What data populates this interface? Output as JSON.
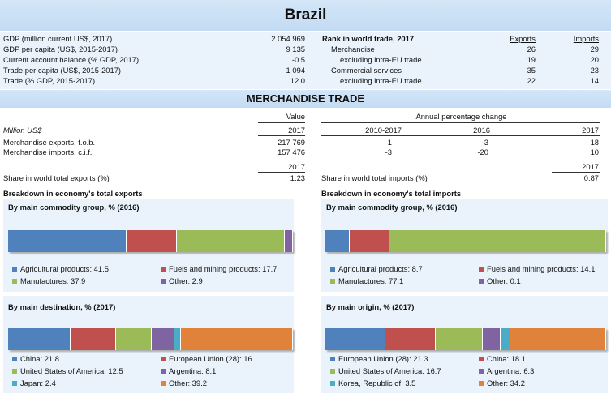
{
  "title": "Brazil",
  "indicators": [
    {
      "label": "GDP (million current US$, 2017)",
      "value": "2 054 969"
    },
    {
      "label": "GDP per capita (US$, 2015-2017)",
      "value": "9 135"
    },
    {
      "label": "Current account balance (% GDP, 2017)",
      "value": "-0.5"
    },
    {
      "label": "Trade per capita (US$, 2015-2017)",
      "value": "1 094"
    },
    {
      "label": "Trade (% GDP, 2015-2017)",
      "value": "12.0"
    }
  ],
  "rank": {
    "title": "Rank in world trade, 2017",
    "exports_hdr": "Exports",
    "imports_hdr": "Imports",
    "rows": [
      {
        "label": "Merchandise",
        "exports": "26",
        "imports": "29"
      },
      {
        "label": "excluding intra-EU trade",
        "exports": "19",
        "imports": "20"
      },
      {
        "label": "Commercial services",
        "exports": "35",
        "imports": "23"
      },
      {
        "label": "excluding intra-EU trade",
        "exports": "22",
        "imports": "14"
      }
    ]
  },
  "merch": {
    "title": "MERCHANDISE TRADE",
    "value_hdr": "Value",
    "apc_hdr": "Annual percentage change",
    "unit": "Million US$",
    "years": [
      "2017",
      "2010-2017",
      "2016",
      "2017"
    ],
    "rows": [
      {
        "label": "Merchandise exports, f.o.b.",
        "value": "217 769",
        "p1": "1",
        "p2": "-3",
        "p3": "18"
      },
      {
        "label": "Merchandise imports, c.i.f.",
        "value": "157 476",
        "p1": "-3",
        "p2": "-20",
        "p3": "10"
      }
    ],
    "share_year": "2017",
    "share_exp_label": "Share in world total exports (%)",
    "share_exp": "1.23",
    "share_imp_label": "Share in world total imports (%)",
    "share_imp": "0.87"
  },
  "colors": {
    "blue": "#4f81bd",
    "red": "#c0504d",
    "green": "#9bbb59",
    "purple": "#8064a2",
    "teal": "#4bacc6",
    "orange": "#e0823a"
  },
  "exports": {
    "heading": "Breakdown in economy's total exports",
    "commodity": {
      "title": "By main commodity group, % (2016)",
      "items": [
        {
          "label": "Agricultural products: 41.5",
          "value": 41.5,
          "color": "blue"
        },
        {
          "label": "Fuels and mining products: 17.7",
          "value": 17.7,
          "color": "red"
        },
        {
          "label": "Manufactures: 37.9",
          "value": 37.9,
          "color": "green"
        },
        {
          "label": "Other: 2.9",
          "value": 2.9,
          "color": "purple"
        }
      ]
    },
    "dest": {
      "title": "By main destination, % (2017)",
      "items": [
        {
          "label": "China: 21.8",
          "value": 21.8,
          "color": "blue"
        },
        {
          "label": "European Union (28): 16",
          "value": 16,
          "color": "red"
        },
        {
          "label": "United States of America: 12.5",
          "value": 12.5,
          "color": "green"
        },
        {
          "label": "Argentina: 8.1",
          "value": 8.1,
          "color": "purple"
        },
        {
          "label": "Japan: 2.4",
          "value": 2.4,
          "color": "teal"
        },
        {
          "label": "Other: 39.2",
          "value": 39.2,
          "color": "orange"
        }
      ]
    }
  },
  "imports": {
    "heading": "Breakdown in economy's total imports",
    "commodity": {
      "title": "By main commodity group, % (2016)",
      "items": [
        {
          "label": "Agricultural products: 8.7",
          "value": 8.7,
          "color": "blue"
        },
        {
          "label": "Fuels and mining products: 14.1",
          "value": 14.1,
          "color": "red"
        },
        {
          "label": "Manufactures: 77.1",
          "value": 77.1,
          "color": "green"
        },
        {
          "label": "Other: 0.1",
          "value": 0.1,
          "color": "purple"
        }
      ]
    },
    "origin": {
      "title": "By main origin, % (2017)",
      "items": [
        {
          "label": "European Union (28): 21.3",
          "value": 21.3,
          "color": "blue"
        },
        {
          "label": "China: 18.1",
          "value": 18.1,
          "color": "red"
        },
        {
          "label": "United States of America: 16.7",
          "value": 16.7,
          "color": "green"
        },
        {
          "label": "Argentina: 6.3",
          "value": 6.3,
          "color": "purple"
        },
        {
          "label": "Korea, Republic of: 3.5",
          "value": 3.5,
          "color": "teal"
        },
        {
          "label": "Other: 34.2",
          "value": 34.2,
          "color": "orange"
        }
      ]
    }
  }
}
